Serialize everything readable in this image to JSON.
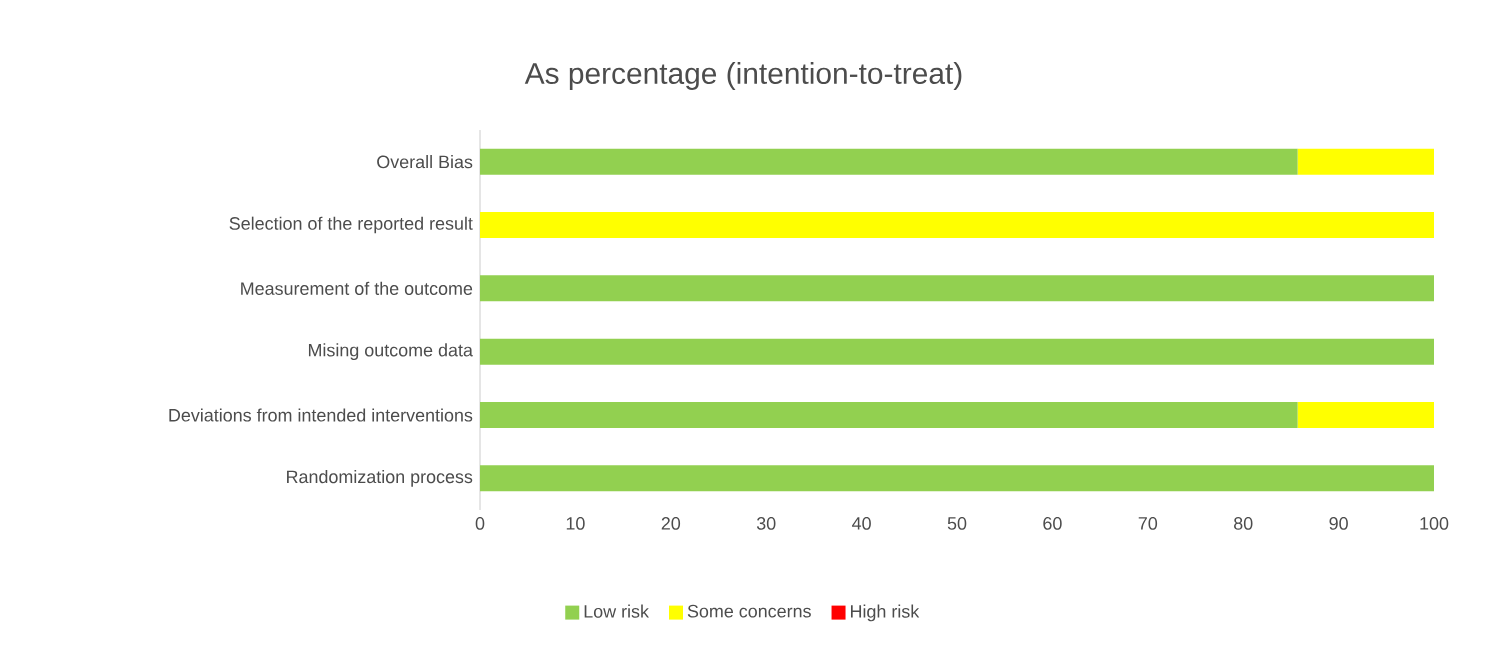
{
  "chart_data": {
    "type": "bar",
    "title": "As percentage (intention-to-treat)",
    "orientation": "horizontal",
    "stacked": true,
    "categories": [
      "Overall Bias",
      "Selection of the reported result",
      "Measurement of the outcome",
      "Mising outcome data",
      "Deviations from intended interventions",
      "Randomization process"
    ],
    "series": [
      {
        "name": "Low risk",
        "color": "#92d050",
        "values": [
          85.7,
          0,
          100,
          100,
          85.7,
          100
        ]
      },
      {
        "name": "Some concerns",
        "color": "#ffff00",
        "values": [
          14.3,
          100,
          0,
          0,
          14.3,
          0
        ]
      },
      {
        "name": "High risk",
        "color": "#ff0000",
        "values": [
          0,
          0,
          0,
          0,
          0,
          0
        ]
      }
    ],
    "xlim": [
      0,
      100
    ],
    "xticks": [
      0,
      10,
      20,
      30,
      40,
      50,
      60,
      70,
      80,
      90,
      100
    ],
    "grid": false,
    "legend": "bottom"
  }
}
